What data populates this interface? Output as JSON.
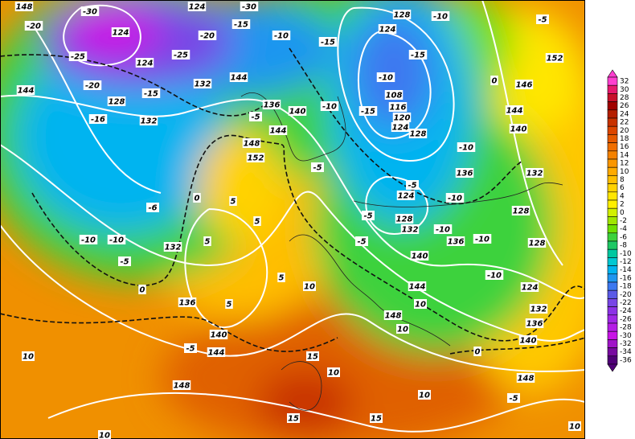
{
  "contour_labels": [
    148,
    -30,
    -20,
    124,
    124,
    -30,
    -25,
    124,
    -25,
    -20,
    -15,
    -10,
    -15,
    124,
    128,
    -10,
    -5,
    152,
    -15,
    146,
    0,
    144,
    -20,
    128,
    -15,
    132,
    144,
    136,
    140,
    -10,
    -10,
    108,
    116,
    120,
    124,
    -15,
    128,
    144,
    140,
    -10,
    -16,
    132,
    -5,
    144,
    148,
    152,
    -5,
    136,
    132,
    -10,
    124,
    -5,
    128,
    -5,
    132,
    -10,
    128,
    -6,
    0,
    5,
    5,
    5,
    -10,
    -10,
    132,
    -5,
    0,
    -5,
    136,
    -10,
    140,
    128,
    144,
    -10,
    124,
    10,
    5,
    136,
    5,
    140,
    148,
    10,
    10,
    132,
    136,
    140,
    0,
    10,
    144,
    -5,
    148,
    15,
    10,
    148,
    -5,
    10,
    15,
    15,
    10,
    10
  ],
  "colorbar": {
    "ticks": [
      32,
      30,
      28,
      26,
      24,
      22,
      20,
      18,
      16,
      14,
      12,
      10,
      8,
      6,
      4,
      2,
      0,
      -2,
      -4,
      -6,
      -8,
      -10,
      -12,
      -14,
      -16,
      -18,
      -20,
      -22,
      -24,
      -26,
      -28,
      -30,
      -32,
      -34,
      -36
    ],
    "colors": [
      "#ff3fd0",
      "#e6196e",
      "#c8102c",
      "#a00000",
      "#b41e00",
      "#c83200",
      "#dc4600",
      "#e65a00",
      "#f06e00",
      "#f58200",
      "#fa9600",
      "#ffaa00",
      "#ffbe00",
      "#ffd200",
      "#ffe600",
      "#fff000",
      "#d2f000",
      "#a0e600",
      "#6ee000",
      "#3cd23c",
      "#1ec864",
      "#00c8a0",
      "#00c8d2",
      "#00b4f0",
      "#1e96f0",
      "#3c78f0",
      "#5a5ae6",
      "#7846e6",
      "#8c32e6",
      "#a028e6",
      "#b41ee6",
      "#c814e6",
      "#a014c8",
      "#780aa0",
      "#500078"
    ]
  }
}
